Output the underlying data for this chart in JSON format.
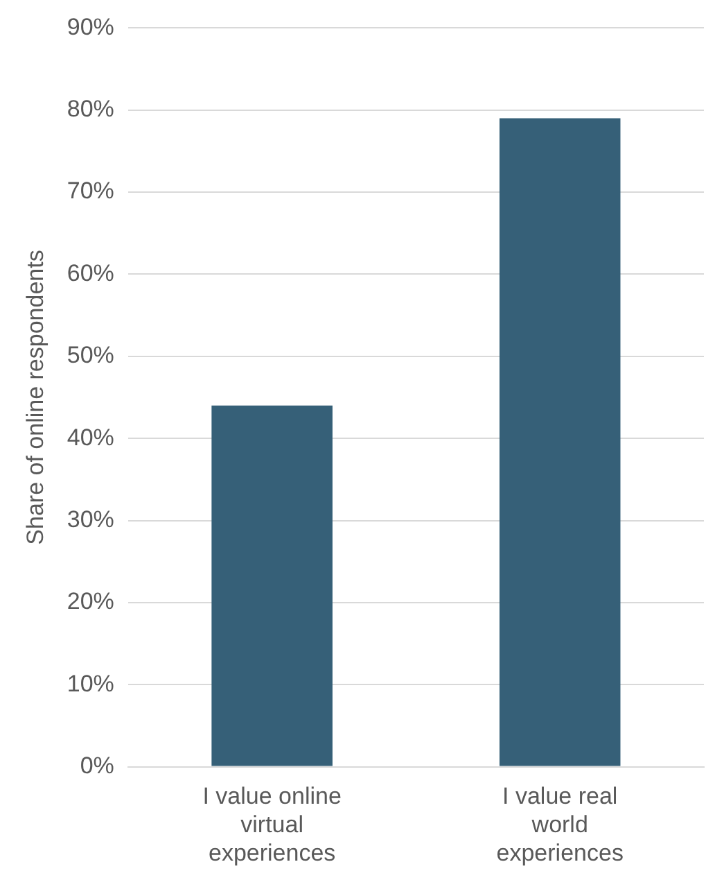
{
  "chart_data": {
    "type": "bar",
    "ylabel": "Share of online respondents",
    "categories": [
      "I value online virtual experiences",
      "I value real world experiences"
    ],
    "values": [
      44,
      79
    ],
    "color": "#366078",
    "ylim": [
      0,
      90
    ],
    "yticks": [
      {
        "value": 0,
        "label": "0%"
      },
      {
        "value": 10,
        "label": "10%"
      },
      {
        "value": 20,
        "label": "20%"
      },
      {
        "value": 30,
        "label": "30%"
      },
      {
        "value": 40,
        "label": "40%"
      },
      {
        "value": 50,
        "label": "50%"
      },
      {
        "value": 60,
        "label": "60%"
      },
      {
        "value": 70,
        "label": "70%"
      },
      {
        "value": 80,
        "label": "80%"
      },
      {
        "value": 90,
        "label": "90%"
      }
    ],
    "grid": "y"
  }
}
